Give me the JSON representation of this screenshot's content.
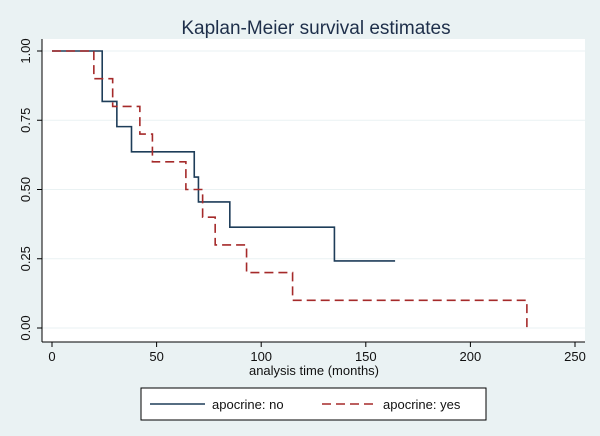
{
  "chart_data": {
    "type": "line",
    "title": "Kaplan-Meier survival estimates",
    "xlabel": "analysis time (months)",
    "ylabel": "",
    "xlim": [
      0,
      250
    ],
    "ylim": [
      0,
      1
    ],
    "xticks": [
      0,
      50,
      100,
      150,
      200,
      250
    ],
    "yticks": [
      0,
      0.25,
      0.5,
      0.75,
      1
    ],
    "xtick_labels": [
      "0",
      "50",
      "100",
      "150",
      "200",
      "250"
    ],
    "ytick_labels": [
      "0.00",
      "0.25",
      "0.50",
      "0.75",
      "1.00"
    ],
    "grid": true,
    "legend_position": "bottom",
    "step": true,
    "series": [
      {
        "name": "apocrine: no",
        "color": "#1e3d59",
        "dash": "solid",
        "x": [
          0,
          24,
          31,
          38,
          68,
          70,
          85,
          135,
          164
        ],
        "y": [
          1.0,
          0.818,
          0.727,
          0.636,
          0.545,
          0.455,
          0.364,
          0.242,
          0.242
        ]
      },
      {
        "name": "apocrine: yes",
        "color": "#a52a2a",
        "dash": "dashed",
        "x": [
          0,
          20,
          29,
          42,
          48,
          64,
          72,
          78,
          93,
          115,
          227
        ],
        "y": [
          1.0,
          0.9,
          0.8,
          0.7,
          0.6,
          0.5,
          0.4,
          0.3,
          0.2,
          0.1,
          0.0
        ]
      }
    ]
  }
}
